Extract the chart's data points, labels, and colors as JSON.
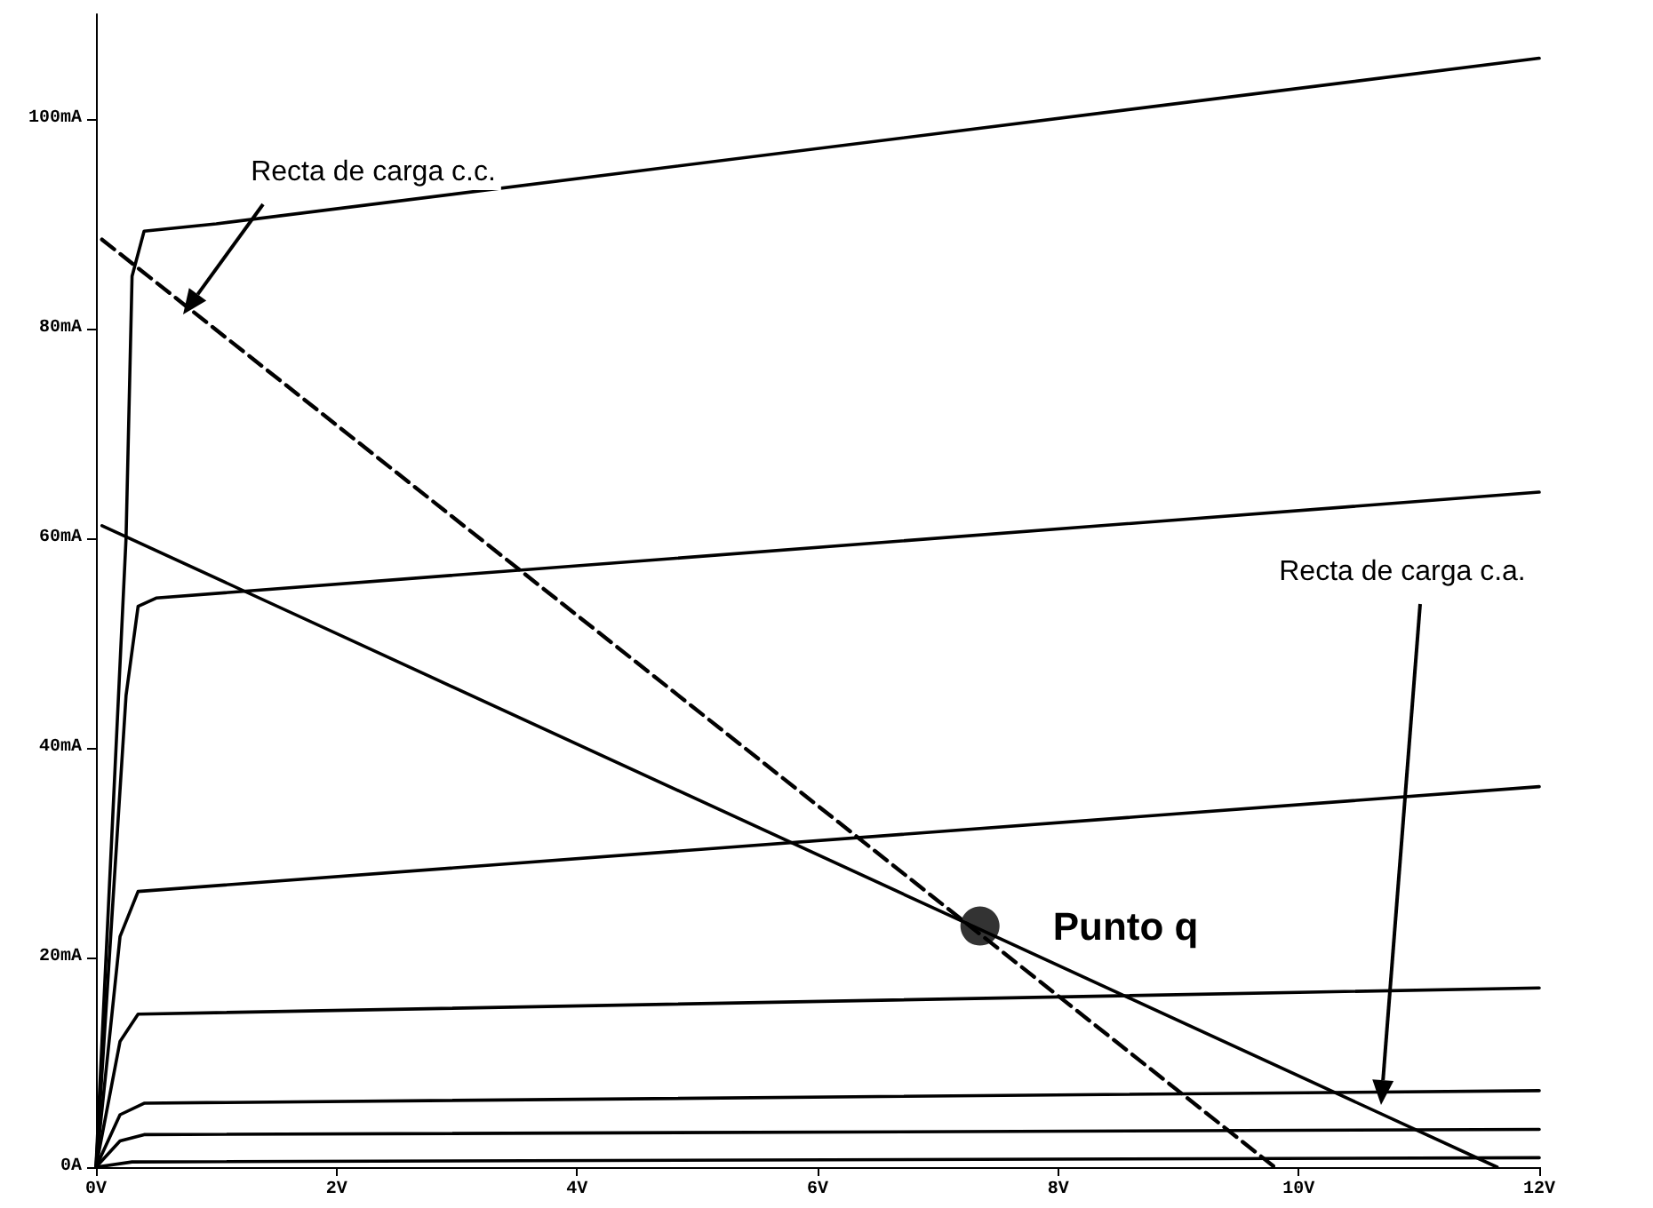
{
  "chart_data": {
    "type": "line",
    "xlim": [
      0,
      12
    ],
    "ylim": [
      0,
      110
    ],
    "xticks": [
      {
        "value": 0,
        "label": "0V"
      },
      {
        "value": 2,
        "label": "2V"
      },
      {
        "value": 4,
        "label": "4V"
      },
      {
        "value": 6,
        "label": "6V"
      },
      {
        "value": 8,
        "label": "8V"
      },
      {
        "value": 10,
        "label": "10V"
      },
      {
        "value": 12,
        "label": "12V"
      }
    ],
    "yticks": [
      {
        "value": 0,
        "label": "0A"
      },
      {
        "value": 20,
        "label": "20mA"
      },
      {
        "value": 40,
        "label": "40mA"
      },
      {
        "value": 60,
        "label": "60mA"
      },
      {
        "value": 80,
        "label": "80mA"
      },
      {
        "value": 100,
        "label": "100mA"
      }
    ],
    "grid": false,
    "series": [
      {
        "color": "#000000",
        "line_style": "solid",
        "x": [
          0,
          0.25,
          0.3,
          0.4,
          1,
          12
        ],
        "values": [
          0,
          60,
          85,
          89.3,
          90,
          105.8
        ]
      },
      {
        "color": "#000000",
        "line_style": "solid",
        "x": [
          0,
          0.25,
          0.35,
          0.5,
          12
        ],
        "values": [
          0,
          45,
          53.5,
          54.3,
          64.4
        ]
      },
      {
        "color": "#000000",
        "line_style": "solid",
        "x": [
          0,
          0.2,
          0.35,
          12
        ],
        "values": [
          0,
          22,
          26.3,
          36.3
        ]
      },
      {
        "color": "#000000",
        "line_style": "solid",
        "x": [
          0,
          0.2,
          0.35,
          12
        ],
        "values": [
          0,
          12,
          14.6,
          17.1
        ]
      },
      {
        "color": "#000000",
        "line_style": "solid",
        "x": [
          0,
          0.2,
          0.4,
          12
        ],
        "values": [
          0,
          5,
          6.1,
          7.3
        ]
      },
      {
        "color": "#000000",
        "line_style": "solid",
        "x": [
          0,
          0.2,
          0.4,
          12
        ],
        "values": [
          0,
          2.5,
          3.1,
          3.6
        ]
      },
      {
        "color": "#000000",
        "line_style": "solid",
        "x": [
          0,
          0.3,
          12
        ],
        "values": [
          0,
          0.5,
          0.9
        ]
      },
      {
        "color": "#000000",
        "line_style": "dashed",
        "x": [
          0.05,
          9.8
        ],
        "values": [
          88.5,
          0
        ]
      },
      {
        "color": "#000000",
        "line_style": "solid",
        "x": [
          0.05,
          11.65
        ],
        "values": [
          61.2,
          0
        ]
      },
      {
        "type": "scatter",
        "color": "#000000",
        "marker": "circle",
        "x": [
          7.35
        ],
        "values": [
          23
        ]
      }
    ],
    "annotations": [
      "Recta de carga c.c.",
      "Recta de carga c.a.",
      {
        "text": "Punto q",
        "x": 7.35,
        "y": 23
      }
    ]
  }
}
